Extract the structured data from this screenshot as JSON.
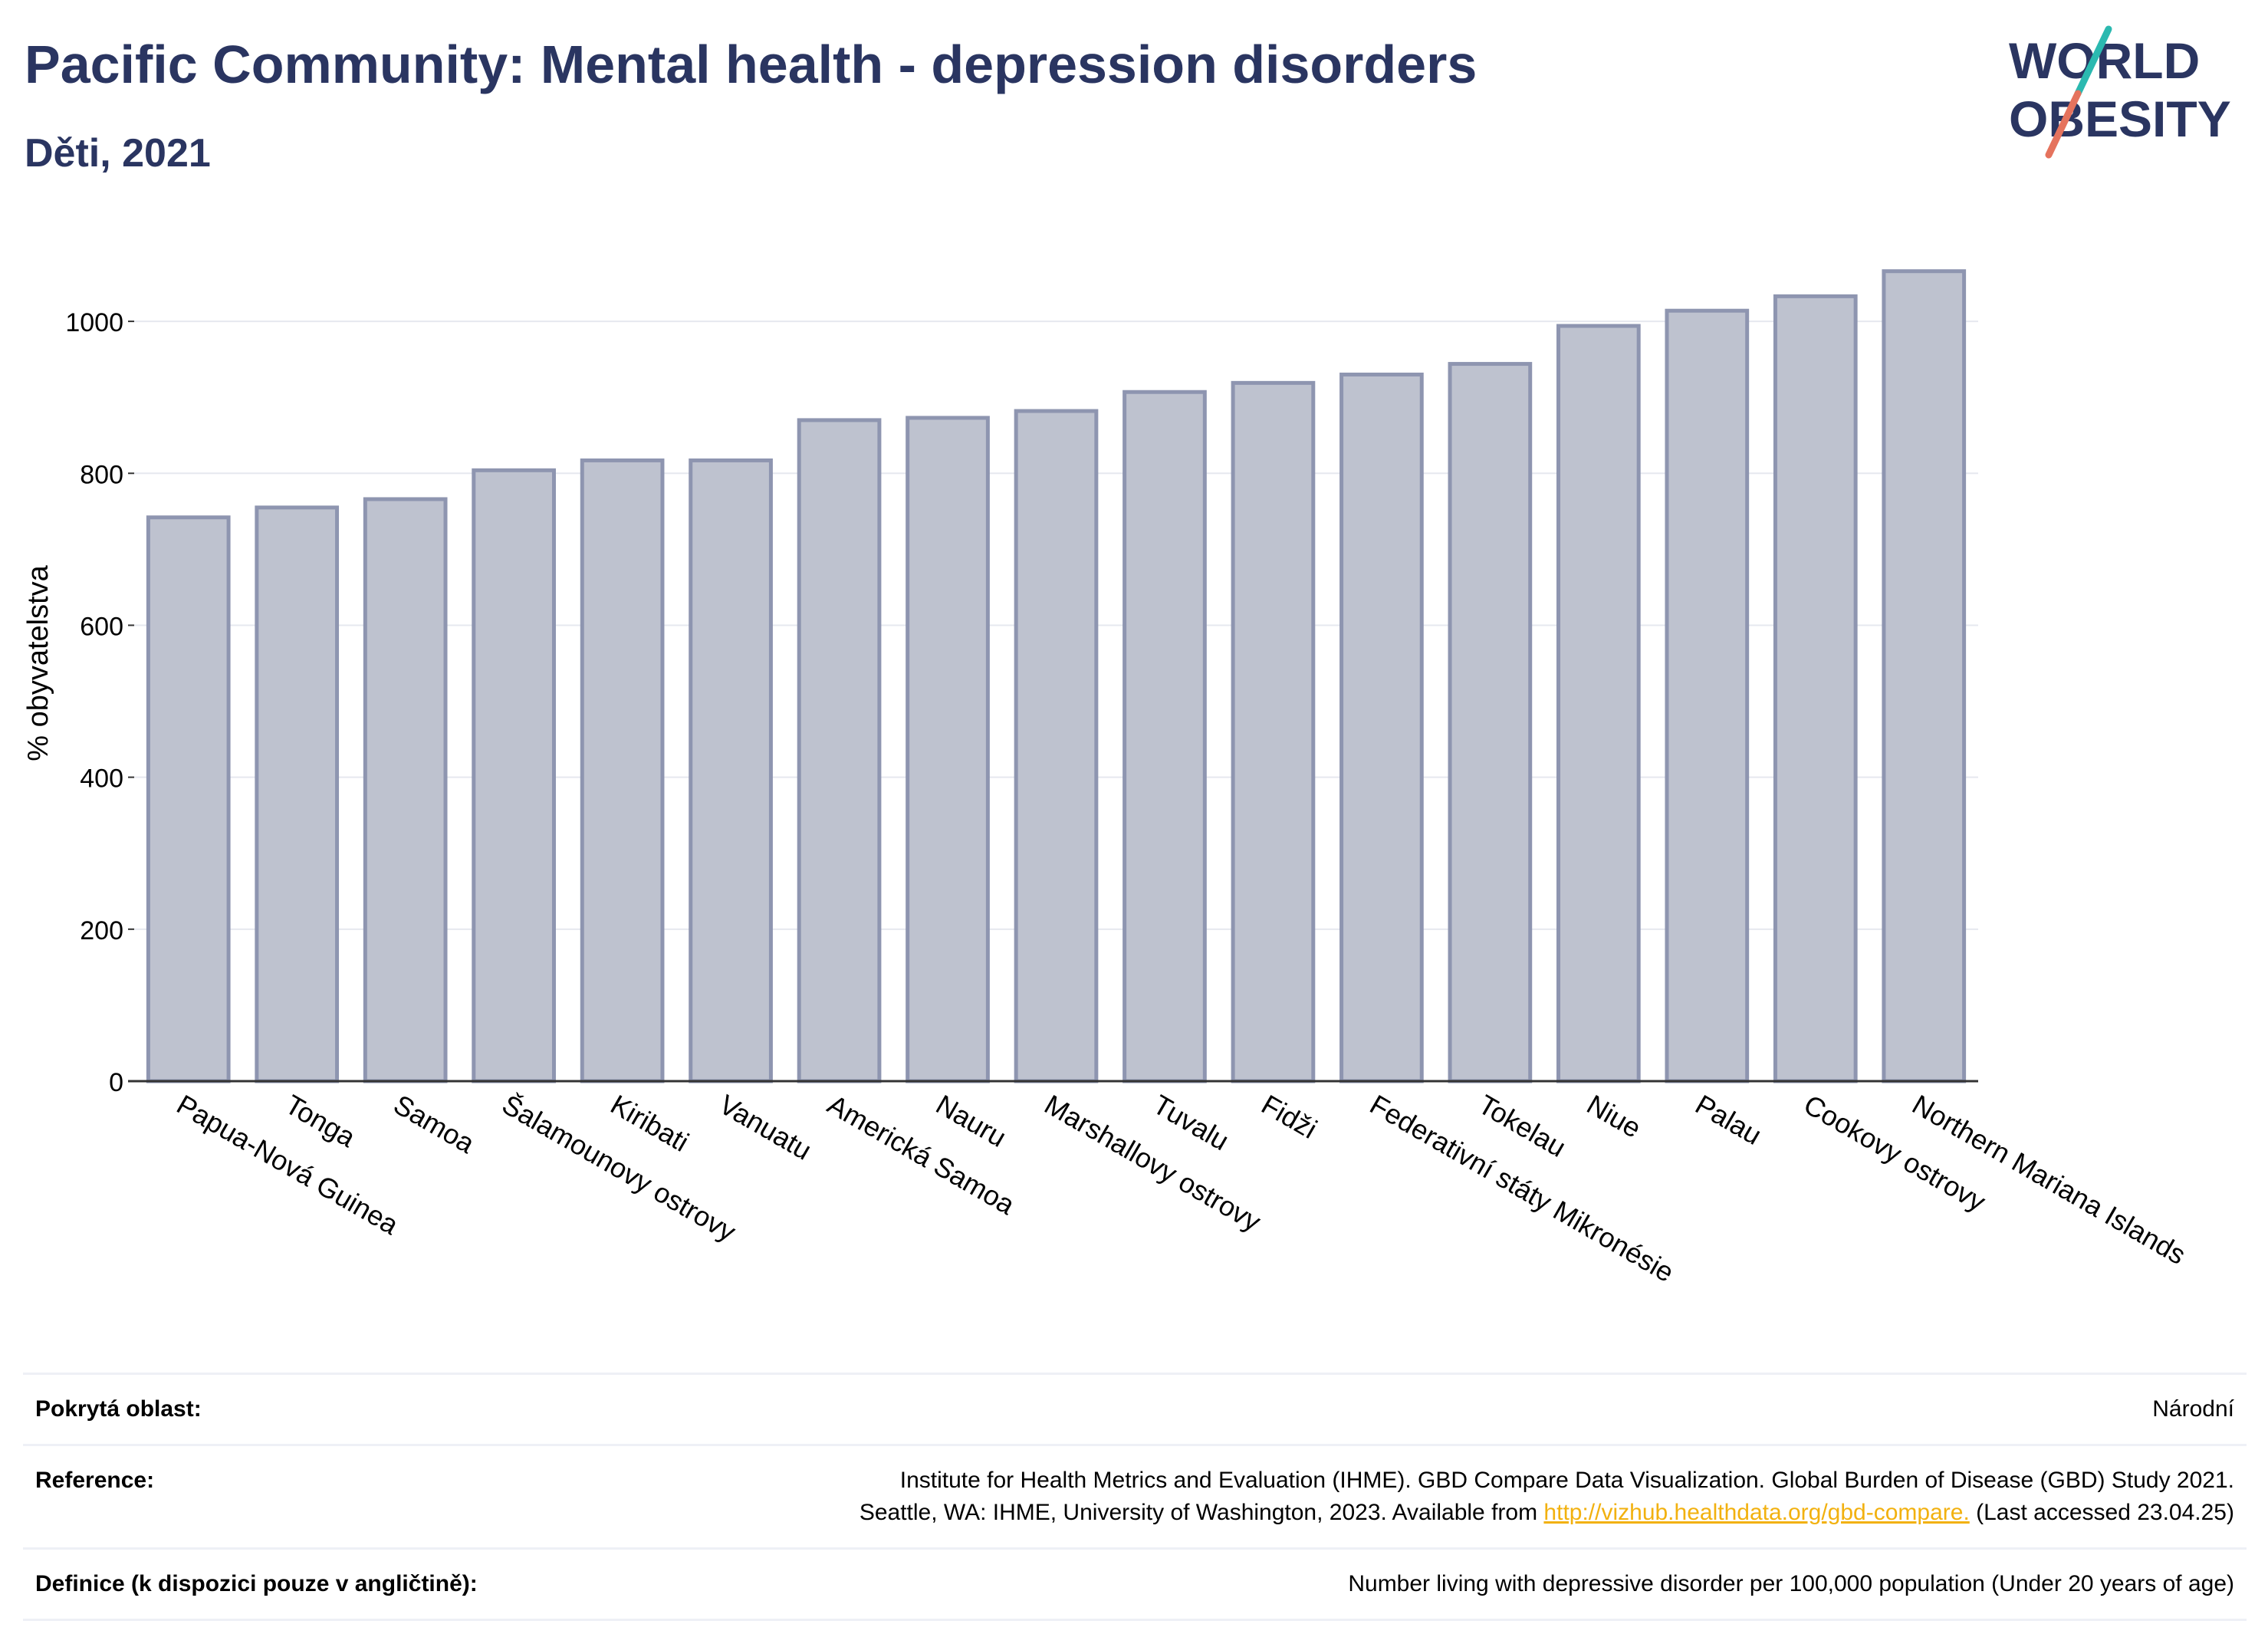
{
  "header": {
    "title": "Pacific Community: Mental health - depression disorders",
    "subtitle": "Děti, 2021"
  },
  "logo": {
    "text_line1": "WORLD",
    "text_line2": "OBESITY",
    "colors": {
      "text": "#2a3561",
      "slash_top": "#2bb9b0",
      "slash_bottom": "#e5735d"
    }
  },
  "chart_data": {
    "type": "bar",
    "title": "",
    "xlabel": "",
    "ylabel": "% obyvatelstva",
    "ylim": [
      0,
      1100
    ],
    "yticks": [
      0,
      200,
      400,
      600,
      800,
      1000
    ],
    "grid": true,
    "categories": [
      "Papua-Nová Guinea",
      "Tonga",
      "Samoa",
      "Šalamounovy ostrovy",
      "Kiribati",
      "Vanuatu",
      "Americká Samoa",
      "Nauru",
      "Marshallovy ostrovy",
      "Tuvalu",
      "Fidži",
      "Federativní státy Mikronésie",
      "Tokelau",
      "Niue",
      "Palau",
      "Cookovy ostrovy",
      "Northern Mariana Islands"
    ],
    "values": [
      742,
      755,
      766,
      804,
      817,
      817,
      870,
      873,
      882,
      907,
      919,
      930,
      944,
      994,
      1014,
      1033,
      1066
    ],
    "colors": {
      "bar_fill": "#bec2cf",
      "bar_stroke": "#8e95b0",
      "grid": "#e6e8ef",
      "axis": "#333333"
    }
  },
  "footer": {
    "rows": [
      {
        "label": "Pokrytá oblast:",
        "value": "Národní"
      },
      {
        "label": "Reference:",
        "value_line1": "Institute for Health Metrics and Evaluation (IHME). GBD Compare Data Visualization. Global Burden of Disease (GBD) Study 2021.",
        "value_line2_pre": "Seattle, WA: IHME, University of Washington, 2023. Available from ",
        "link": "http://vizhub.healthdata.org/gbd-compare.",
        "value_line2_post": " (Last accessed 23.04.25)"
      },
      {
        "label": "Definice (k dispozici pouze v angličtině):",
        "value": "Number living with depressive disorder per 100,000 population (Under 20 years of age)"
      }
    ]
  }
}
